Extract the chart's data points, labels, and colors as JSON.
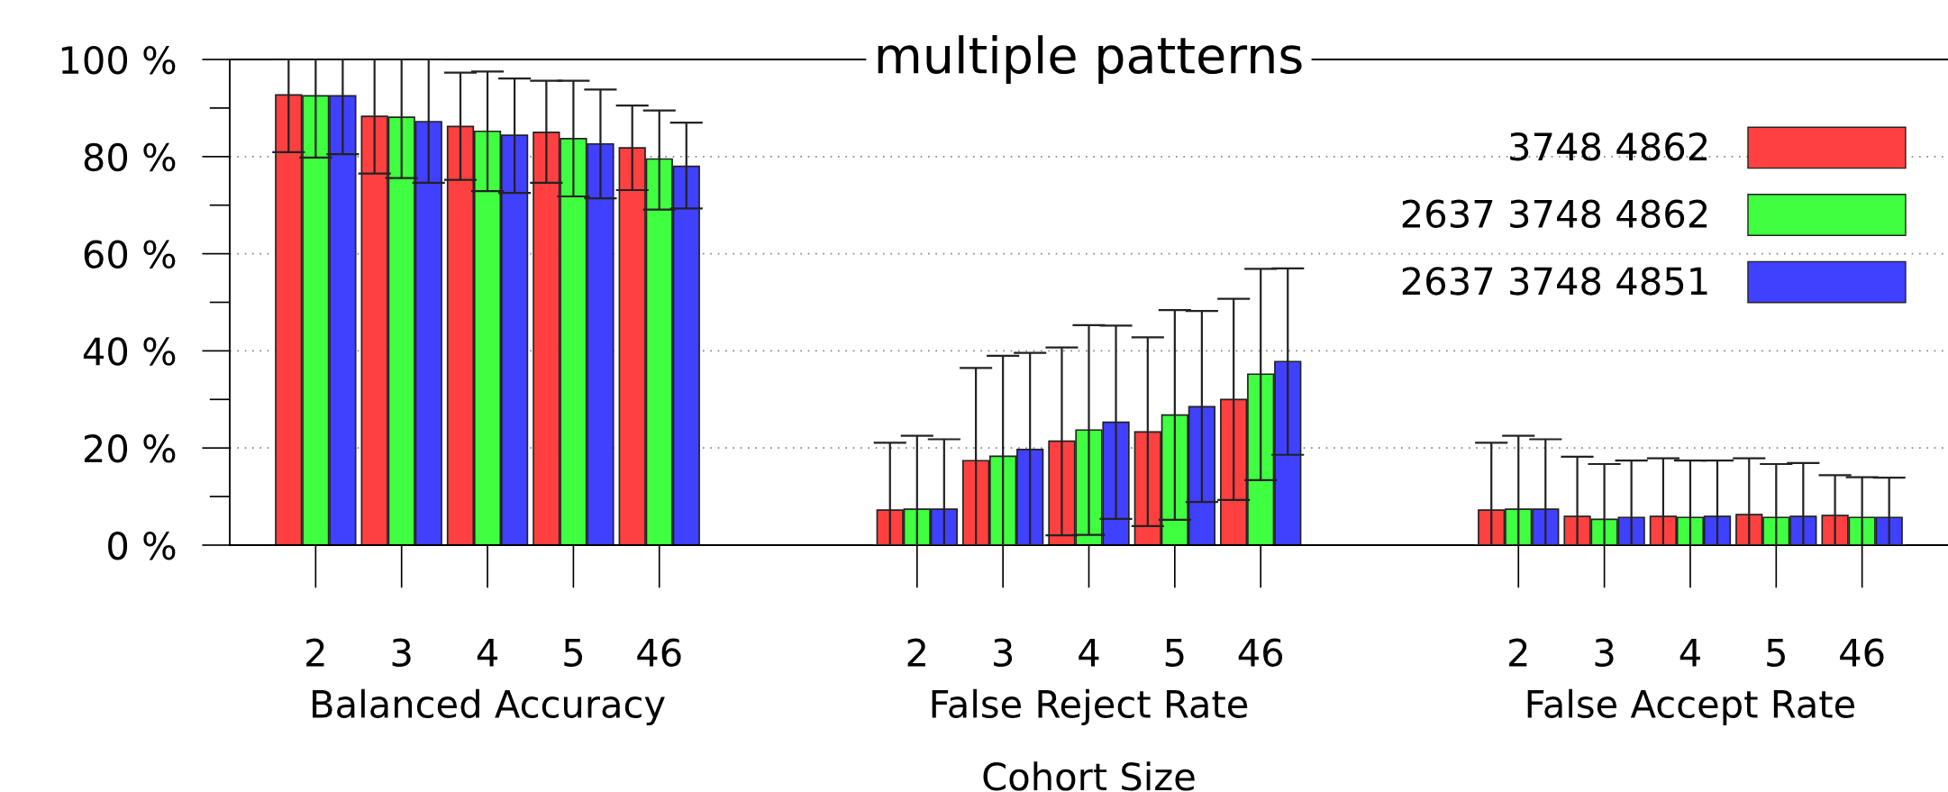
{
  "chart_data": {
    "type": "bar",
    "title": "multiple patterns",
    "xlabel": "Cohort Size",
    "categories": [
      "2",
      "3",
      "4",
      "5",
      "46",
      null,
      null,
      "2",
      "3",
      "4",
      "5",
      "46",
      null,
      null,
      "2",
      "3",
      "4",
      "5",
      "46"
    ],
    "annotations": [
      "Balanced Accuracy",
      "False Reject Rate",
      "False Accept Rate"
    ],
    "series": [
      {
        "name": "3748 4862",
        "color": "#ff4040",
        "values": [
          92.7,
          88.3,
          86.2,
          85.0,
          81.8,
          null,
          null,
          7.2,
          17.4,
          21.4,
          23.3,
          30.0,
          null,
          null,
          7.2,
          5.9,
          5.9,
          6.3,
          6.1
        ],
        "errors": [
          [
            80.9,
            100
          ],
          [
            76.5,
            100
          ],
          [
            75.2,
            97.3
          ],
          [
            74.6,
            95.6
          ],
          [
            73.1,
            90.5
          ],
          null,
          null,
          [
            0,
            21.1
          ],
          [
            0,
            36.5
          ],
          [
            2.0,
            40.7
          ],
          [
            3.9,
            42.8
          ],
          [
            9.3,
            50.7
          ],
          null,
          null,
          [
            0,
            21.1
          ],
          [
            0,
            18.2
          ],
          [
            0,
            17.9
          ],
          [
            0,
            17.9
          ],
          [
            0,
            14.4
          ]
        ]
      },
      {
        "name": "2637 3748 4862",
        "color": "#40ff40",
        "values": [
          92.5,
          88.1,
          85.2,
          83.7,
          79.5,
          null,
          null,
          7.4,
          18.3,
          23.7,
          26.8,
          35.2,
          null,
          null,
          7.4,
          5.3,
          5.7,
          5.7,
          5.7
        ],
        "errors": [
          [
            79.8,
            100
          ],
          [
            75.6,
            100
          ],
          [
            72.9,
            97.5
          ],
          [
            71.8,
            95.6
          ],
          [
            69.1,
            89.5
          ],
          null,
          null,
          [
            0,
            22.5
          ],
          [
            0,
            39.0
          ],
          [
            2.1,
            45.3
          ],
          [
            5.2,
            48.4
          ],
          [
            13.4,
            56.9
          ],
          null,
          null,
          [
            0,
            22.5
          ],
          [
            0,
            16.7
          ],
          [
            0,
            17.4
          ],
          [
            0,
            16.7
          ],
          [
            0,
            14.0
          ]
        ]
      },
      {
        "name": "2637 3748 4851",
        "color": "#4040ff",
        "values": [
          92.5,
          87.2,
          84.4,
          82.6,
          78.0,
          null,
          null,
          7.4,
          19.7,
          25.3,
          28.5,
          37.8,
          null,
          null,
          7.4,
          5.7,
          5.9,
          5.9,
          5.7
        ],
        "errors": [
          [
            80.5,
            100
          ],
          [
            74.6,
            100
          ],
          [
            72.5,
            96.1
          ],
          [
            71.4,
            93.8
          ],
          [
            69.3,
            87.0
          ],
          null,
          null,
          [
            0,
            21.8
          ],
          [
            0,
            39.6
          ],
          [
            5.4,
            45.2
          ],
          [
            8.9,
            48.2
          ],
          [
            18.6,
            57.0
          ],
          null,
          null,
          [
            0,
            21.8
          ],
          [
            0,
            17.4
          ],
          [
            0,
            17.4
          ],
          [
            0,
            16.9
          ],
          [
            0,
            13.9
          ]
        ]
      }
    ],
    "ylim": [
      0,
      100
    ],
    "yticks": [
      {
        "value": 0,
        "label": "0 %"
      },
      {
        "value": 20,
        "label": "20 %"
      },
      {
        "value": 40,
        "label": "40 %"
      },
      {
        "value": 60,
        "label": "60 %"
      },
      {
        "value": 80,
        "label": "80 %"
      },
      {
        "value": 100,
        "label": "100 %"
      }
    ],
    "grid": "y",
    "legend": "top right"
  }
}
